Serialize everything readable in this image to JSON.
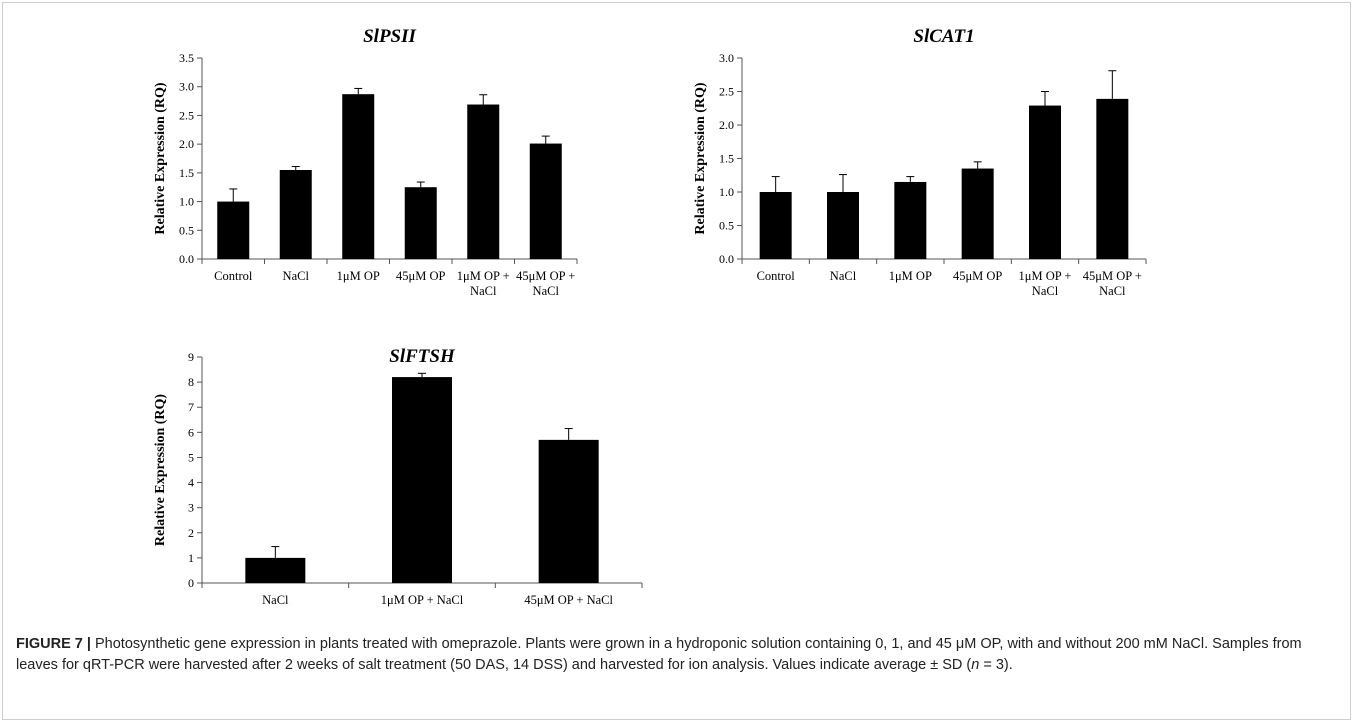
{
  "chart_data": [
    {
      "type": "bar",
      "title": "SlPSII",
      "ylabel": "Relative Expression  (RQ)",
      "xlabel": "",
      "ylim": [
        0,
        3.5
      ],
      "yticks": [
        "0.0",
        "0.5",
        "1.0",
        "1.5",
        "2.0",
        "2.5",
        "3.0",
        "3.5"
      ],
      "categories": [
        [
          "Control"
        ],
        [
          "NaCl"
        ],
        [
          "1μM OP"
        ],
        [
          "45μM OP"
        ],
        [
          "1μM OP +",
          "NaCl"
        ],
        [
          "45μM OP +",
          "NaCl"
        ]
      ],
      "values": [
        1.0,
        1.55,
        2.87,
        1.25,
        2.69,
        2.01
      ],
      "errors": [
        0.22,
        0.06,
        0.1,
        0.09,
        0.17,
        0.13
      ],
      "bar_color": "#000000"
    },
    {
      "type": "bar",
      "title": "SlCAT1",
      "ylabel": "Relative Expression  (RQ)",
      "xlabel": "",
      "ylim": [
        0,
        3.0
      ],
      "yticks": [
        "0.0",
        "0.5",
        "1.0",
        "1.5",
        "2.0",
        "2.5",
        "3.0"
      ],
      "categories": [
        [
          "Control"
        ],
        [
          "NaCl"
        ],
        [
          "1μM OP"
        ],
        [
          "45μM OP"
        ],
        [
          "1μM OP +",
          "NaCl"
        ],
        [
          "45μM OP +",
          "NaCl"
        ]
      ],
      "values": [
        1.0,
        1.0,
        1.15,
        1.35,
        2.29,
        2.39
      ],
      "errors": [
        0.23,
        0.26,
        0.08,
        0.1,
        0.21,
        0.42
      ],
      "bar_color": "#000000"
    },
    {
      "type": "bar",
      "title": "SlFTSH",
      "ylabel": "Relative Expression  (RQ)",
      "xlabel": "",
      "ylim": [
        0,
        9
      ],
      "yticks": [
        "0",
        "1",
        "2",
        "3",
        "4",
        "5",
        "6",
        "7",
        "8",
        "9"
      ],
      "categories": [
        [
          "NaCl"
        ],
        [
          "1μM OP + NaCl"
        ],
        [
          "45μM OP + NaCl"
        ]
      ],
      "values": [
        1.0,
        8.2,
        5.7
      ],
      "errors": [
        0.45,
        0.15,
        0.45
      ],
      "bar_color": "#000000"
    }
  ],
  "caption": {
    "label": "FIGURE 7 |",
    "text": " Photosynthetic gene expression in plants treated with omeprazole. Plants were grown in a hydroponic solution containing 0, 1, and 45 μM OP, with and without 200 mM NaCl. Samples from leaves for qRT-PCR were harvested after 2 weeks of salt treatment (50 DAS, 14 DSS) and harvested for ion analysis. Values indicate average ± SD (",
    "n_symbol": "n",
    "text_end": " = 3)."
  }
}
